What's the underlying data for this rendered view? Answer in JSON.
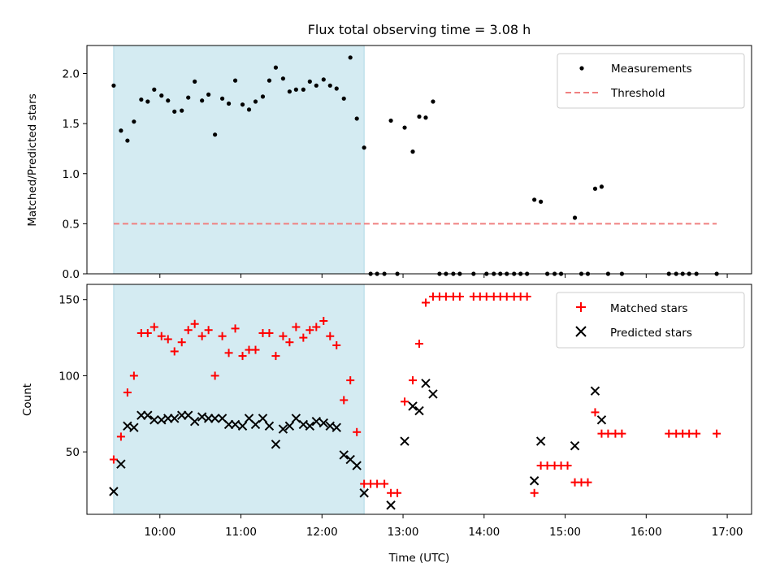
{
  "chart_data": {
    "title": "Flux total observing time = 3.08 h",
    "xlabel": "Time (UTC)",
    "x_ticks": [
      "10:00",
      "11:00",
      "12:00",
      "13:00",
      "14:00",
      "15:00",
      "16:00",
      "17:00"
    ],
    "x_range_hours": [
      9.1,
      17.3
    ],
    "shaded_interval_hours": [
      9.43,
      12.52
    ],
    "colors": {
      "shade": "#add8e6",
      "matched": "#ff0000",
      "predicted": "#000000",
      "threshold": "#f08080",
      "measurement": "#000000"
    },
    "panels": [
      {
        "type": "scatter",
        "ylabel": "Matched/Predicted stars",
        "ylim": [
          0,
          2.28
        ],
        "y_ticks": [
          "0.0",
          "0.5",
          "1.0",
          "1.5",
          "2.0"
        ],
        "y_tick_values": [
          0,
          0.5,
          1.0,
          1.5,
          2.0
        ],
        "legend": [
          "Measurements",
          "Threshold"
        ],
        "threshold": {
          "value": 0.5,
          "x_range_hours": [
            9.43,
            16.87
          ]
        },
        "series": [
          {
            "name": "Measurements",
            "points": [
              [
                9.43,
                1.88
              ],
              [
                9.52,
                1.43
              ],
              [
                9.6,
                1.33
              ],
              [
                9.68,
                1.52
              ],
              [
                9.77,
                1.74
              ],
              [
                9.85,
                1.72
              ],
              [
                9.93,
                1.84
              ],
              [
                10.02,
                1.78
              ],
              [
                10.1,
                1.73
              ],
              [
                10.18,
                1.62
              ],
              [
                10.27,
                1.63
              ],
              [
                10.35,
                1.76
              ],
              [
                10.43,
                1.92
              ],
              [
                10.52,
                1.73
              ],
              [
                10.6,
                1.79
              ],
              [
                10.68,
                1.39
              ],
              [
                10.77,
                1.75
              ],
              [
                10.85,
                1.7
              ],
              [
                10.93,
                1.93
              ],
              [
                11.02,
                1.69
              ],
              [
                11.1,
                1.64
              ],
              [
                11.18,
                1.72
              ],
              [
                11.27,
                1.77
              ],
              [
                11.35,
                1.93
              ],
              [
                11.43,
                2.06
              ],
              [
                11.52,
                1.95
              ],
              [
                11.6,
                1.82
              ],
              [
                11.68,
                1.84
              ],
              [
                11.77,
                1.84
              ],
              [
                11.85,
                1.92
              ],
              [
                11.93,
                1.88
              ],
              [
                12.02,
                1.94
              ],
              [
                12.1,
                1.88
              ],
              [
                12.18,
                1.85
              ],
              [
                12.27,
                1.75
              ],
              [
                12.35,
                2.16
              ],
              [
                12.43,
                1.55
              ],
              [
                12.52,
                1.26
              ],
              [
                12.6,
                0
              ],
              [
                12.68,
                0
              ],
              [
                12.77,
                0
              ],
              [
                12.93,
                0
              ],
              [
                12.85,
                1.53
              ],
              [
                13.02,
                1.46
              ],
              [
                13.12,
                1.22
              ],
              [
                13.2,
                1.57
              ],
              [
                13.28,
                1.56
              ],
              [
                13.37,
                1.72
              ],
              [
                13.45,
                0
              ],
              [
                13.53,
                0
              ],
              [
                13.62,
                0
              ],
              [
                13.7,
                0
              ],
              [
                13.87,
                0
              ],
              [
                14.03,
                0
              ],
              [
                14.12,
                0
              ],
              [
                14.2,
                0
              ],
              [
                14.28,
                0
              ],
              [
                14.37,
                0
              ],
              [
                14.45,
                0
              ],
              [
                14.53,
                0
              ],
              [
                14.62,
                0.74
              ],
              [
                14.7,
                0.72
              ],
              [
                14.78,
                0
              ],
              [
                14.87,
                0
              ],
              [
                14.95,
                0
              ],
              [
                15.2,
                0
              ],
              [
                15.28,
                0
              ],
              [
                15.12,
                0.56
              ],
              [
                15.37,
                0.85
              ],
              [
                15.45,
                0.87
              ],
              [
                15.53,
                0
              ],
              [
                15.7,
                0
              ],
              [
                16.28,
                0
              ],
              [
                16.37,
                0
              ],
              [
                16.45,
                0
              ],
              [
                16.53,
                0
              ],
              [
                16.62,
                0
              ],
              [
                16.87,
                0
              ]
            ]
          }
        ]
      },
      {
        "type": "scatter",
        "ylabel": "Count",
        "ylim": [
          9,
          160
        ],
        "y_ticks": [
          "50",
          "100",
          "150"
        ],
        "y_tick_values": [
          50,
          100,
          150
        ],
        "legend": [
          "Matched stars",
          "Predicted stars"
        ],
        "series": [
          {
            "name": "Matched stars",
            "marker": "+",
            "points": [
              [
                9.43,
                45
              ],
              [
                9.52,
                60
              ],
              [
                9.6,
                89
              ],
              [
                9.68,
                100
              ],
              [
                9.77,
                128
              ],
              [
                9.85,
                128
              ],
              [
                9.93,
                132
              ],
              [
                10.02,
                126
              ],
              [
                10.1,
                124
              ],
              [
                10.18,
                116
              ],
              [
                10.27,
                122
              ],
              [
                10.35,
                130
              ],
              [
                10.43,
                134
              ],
              [
                10.52,
                126
              ],
              [
                10.6,
                130
              ],
              [
                10.68,
                100
              ],
              [
                10.77,
                126
              ],
              [
                10.85,
                115
              ],
              [
                10.93,
                131
              ],
              [
                11.02,
                113
              ],
              [
                11.1,
                117
              ],
              [
                11.18,
                117
              ],
              [
                11.27,
                128
              ],
              [
                11.35,
                128
              ],
              [
                11.43,
                113
              ],
              [
                11.52,
                126
              ],
              [
                11.6,
                122
              ],
              [
                11.68,
                132
              ],
              [
                11.77,
                125
              ],
              [
                11.85,
                130
              ],
              [
                11.93,
                132
              ],
              [
                12.02,
                136
              ],
              [
                12.1,
                126
              ],
              [
                12.18,
                120
              ],
              [
                12.27,
                84
              ],
              [
                12.35,
                97
              ],
              [
                12.43,
                63
              ],
              [
                12.52,
                29
              ],
              [
                12.6,
                29
              ],
              [
                12.68,
                29
              ],
              [
                12.77,
                29
              ],
              [
                12.85,
                23
              ],
              [
                12.93,
                23
              ],
              [
                13.02,
                83
              ],
              [
                13.12,
                97
              ],
              [
                13.2,
                121
              ],
              [
                13.28,
                148
              ],
              [
                13.37,
                152
              ],
              [
                13.45,
                152
              ],
              [
                13.53,
                152
              ],
              [
                13.62,
                152
              ],
              [
                13.7,
                152
              ],
              [
                13.87,
                152
              ],
              [
                13.95,
                152
              ],
              [
                14.03,
                152
              ],
              [
                14.12,
                152
              ],
              [
                14.2,
                152
              ],
              [
                14.28,
                152
              ],
              [
                14.37,
                152
              ],
              [
                14.45,
                152
              ],
              [
                14.53,
                152
              ],
              [
                14.62,
                23
              ],
              [
                14.7,
                41
              ],
              [
                14.78,
                41
              ],
              [
                14.87,
                41
              ],
              [
                14.95,
                41
              ],
              [
                15.03,
                41
              ],
              [
                15.12,
                30
              ],
              [
                15.2,
                30
              ],
              [
                15.28,
                30
              ],
              [
                15.37,
                76
              ],
              [
                15.45,
                62
              ],
              [
                15.53,
                62
              ],
              [
                15.62,
                62
              ],
              [
                15.7,
                62
              ],
              [
                16.28,
                62
              ],
              [
                16.37,
                62
              ],
              [
                16.45,
                62
              ],
              [
                16.53,
                62
              ],
              [
                16.62,
                62
              ],
              [
                16.87,
                62
              ]
            ]
          },
          {
            "name": "Predicted stars",
            "marker": "x",
            "points": [
              [
                9.43,
                24
              ],
              [
                9.52,
                42
              ],
              [
                9.6,
                67
              ],
              [
                9.68,
                66
              ],
              [
                9.77,
                74
              ],
              [
                9.85,
                74
              ],
              [
                9.93,
                71
              ],
              [
                10.02,
                71
              ],
              [
                10.1,
                72
              ],
              [
                10.18,
                72
              ],
              [
                10.27,
                74
              ],
              [
                10.35,
                74
              ],
              [
                10.43,
                70
              ],
              [
                10.52,
                73
              ],
              [
                10.6,
                72
              ],
              [
                10.68,
                72
              ],
              [
                10.77,
                72
              ],
              [
                10.85,
                68
              ],
              [
                10.93,
                68
              ],
              [
                11.02,
                67
              ],
              [
                11.1,
                72
              ],
              [
                11.18,
                68
              ],
              [
                11.27,
                72
              ],
              [
                11.35,
                67
              ],
              [
                11.43,
                55
              ],
              [
                11.52,
                65
              ],
              [
                11.6,
                67
              ],
              [
                11.68,
                72
              ],
              [
                11.77,
                68
              ],
              [
                11.85,
                67
              ],
              [
                11.93,
                70
              ],
              [
                12.02,
                69
              ],
              [
                12.1,
                67
              ],
              [
                12.18,
                66
              ],
              [
                12.27,
                48
              ],
              [
                12.35,
                45
              ],
              [
                12.43,
                41
              ],
              [
                12.52,
                23
              ],
              [
                12.85,
                15
              ],
              [
                13.02,
                57
              ],
              [
                13.12,
                80
              ],
              [
                13.2,
                77
              ],
              [
                13.28,
                95
              ],
              [
                13.37,
                88
              ],
              [
                14.62,
                31
              ],
              [
                14.7,
                57
              ],
              [
                15.12,
                54
              ],
              [
                15.37,
                90
              ],
              [
                15.45,
                71
              ]
            ]
          }
        ]
      }
    ]
  }
}
